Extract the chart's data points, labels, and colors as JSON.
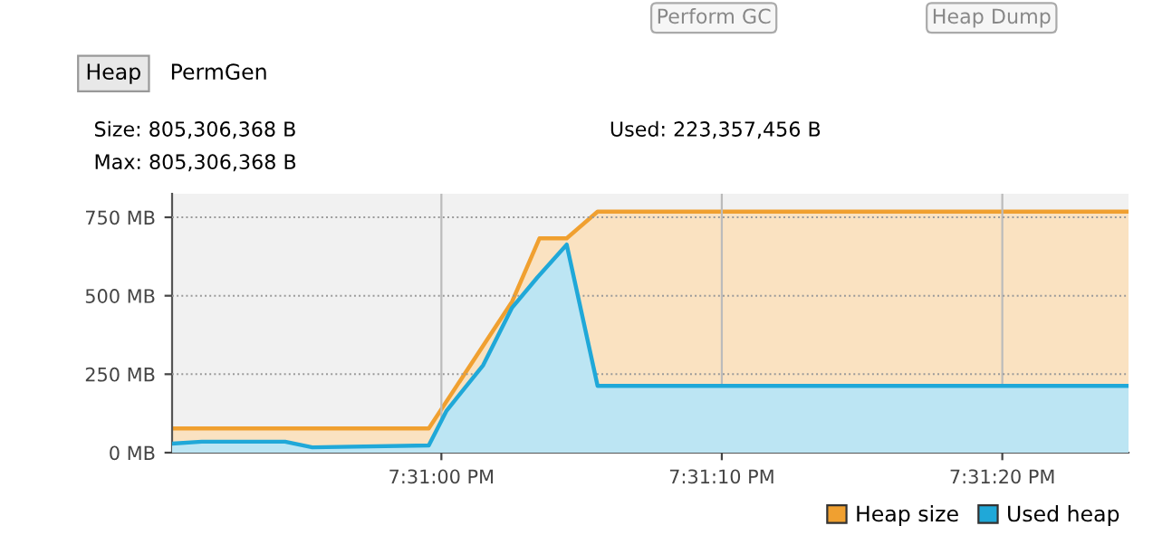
{
  "chart_data": {
    "type": "area",
    "annotations": [
      "Perform GC",
      "Heap Dump",
      "Heap",
      "PermGen",
      "Size: 805,306,368 B",
      "Max: 805,306,368 B",
      "Used: 223,357,456 B"
    ],
    "series": [
      {
        "name": "Heap size",
        "color": "#f0a030",
        "x": [
          19.514,
          19.516542,
          19.517367,
          19.517639,
          19.517908,
          19.518214,
          19.523472
        ],
        "values": [
          77,
          77,
          481,
          683,
          683,
          768,
          768
        ]
      },
      {
        "name": "Used heap",
        "color": "#20a8d8",
        "x": [
          19.514,
          19.514294,
          19.515119,
          19.515389,
          19.516542,
          19.516719,
          19.517081,
          19.517367,
          19.517619,
          19.517908,
          19.518214,
          19.523472
        ],
        "values": [
          29,
          35,
          35,
          17,
          23,
          134,
          279,
          462,
          559,
          663,
          213,
          213
        ]
      }
    ],
    "xlim": [
      19.514,
      19.523472
    ],
    "xticks": [
      {
        "value": 19.516667,
        "label": "7:31:00 PM"
      },
      {
        "value": 19.519444,
        "label": "7:31:10 PM"
      },
      {
        "value": 19.522222,
        "label": "7:31:20 PM"
      }
    ],
    "ylim": [
      0,
      825
    ],
    "yticks": [
      {
        "value": 0,
        "label": "0 MB"
      },
      {
        "value": 250,
        "label": "250 MB"
      },
      {
        "value": 500,
        "label": "500 MB"
      },
      {
        "value": 750,
        "label": "750 MB"
      }
    ],
    "grid": true,
    "legend": "bottom right"
  }
}
